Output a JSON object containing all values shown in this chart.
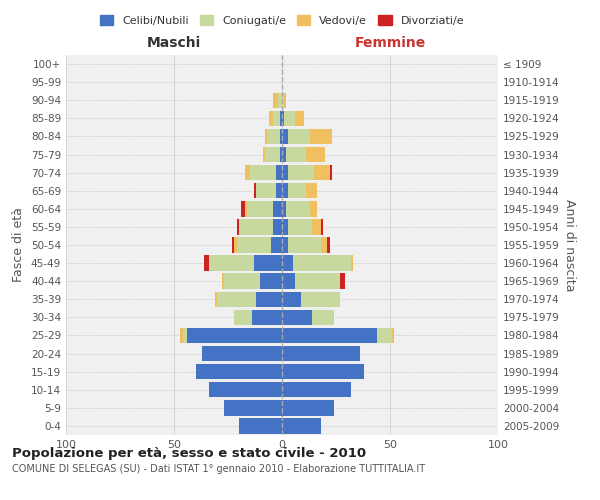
{
  "age_groups": [
    "0-4",
    "5-9",
    "10-14",
    "15-19",
    "20-24",
    "25-29",
    "30-34",
    "35-39",
    "40-44",
    "45-49",
    "50-54",
    "55-59",
    "60-64",
    "65-69",
    "70-74",
    "75-79",
    "80-84",
    "85-89",
    "90-94",
    "95-99",
    "100+"
  ],
  "birth_years": [
    "2005-2009",
    "2000-2004",
    "1995-1999",
    "1990-1994",
    "1985-1989",
    "1980-1984",
    "1975-1979",
    "1970-1974",
    "1965-1969",
    "1960-1964",
    "1955-1959",
    "1950-1954",
    "1945-1949",
    "1940-1944",
    "1935-1939",
    "1930-1934",
    "1925-1929",
    "1920-1924",
    "1915-1919",
    "1910-1914",
    "≤ 1909"
  ],
  "maschi": {
    "celibi": [
      20,
      27,
      34,
      40,
      37,
      44,
      14,
      12,
      10,
      13,
      5,
      4,
      4,
      3,
      3,
      1,
      1,
      1,
      0,
      0,
      0
    ],
    "coniugati": [
      0,
      0,
      0,
      0,
      0,
      2,
      8,
      18,
      17,
      21,
      16,
      16,
      12,
      9,
      12,
      7,
      6,
      3,
      2,
      0,
      0
    ],
    "vedovi": [
      0,
      0,
      0,
      0,
      0,
      1,
      0,
      1,
      1,
      0,
      1,
      0,
      1,
      0,
      2,
      1,
      1,
      2,
      2,
      0,
      0
    ],
    "divorziati": [
      0,
      0,
      0,
      0,
      0,
      0,
      0,
      0,
      0,
      2,
      1,
      1,
      2,
      1,
      0,
      0,
      0,
      0,
      0,
      0,
      0
    ]
  },
  "femmine": {
    "nubili": [
      18,
      24,
      32,
      38,
      36,
      44,
      14,
      9,
      6,
      5,
      3,
      3,
      2,
      3,
      3,
      2,
      3,
      1,
      0,
      0,
      0
    ],
    "coniugate": [
      0,
      0,
      0,
      0,
      0,
      7,
      10,
      18,
      21,
      27,
      15,
      11,
      11,
      8,
      12,
      9,
      10,
      5,
      1,
      0,
      0
    ],
    "vedove": [
      0,
      0,
      0,
      0,
      0,
      1,
      0,
      0,
      0,
      1,
      3,
      4,
      3,
      5,
      7,
      9,
      10,
      4,
      1,
      0,
      0
    ],
    "divorziate": [
      0,
      0,
      0,
      0,
      0,
      0,
      0,
      0,
      2,
      0,
      1,
      1,
      0,
      0,
      1,
      0,
      0,
      0,
      0,
      0,
      0
    ]
  },
  "colors": {
    "celibi_nubili": "#4472c4",
    "coniugati": "#c8d9a0",
    "vedovi": "#f0c060",
    "divorziati": "#cc2222"
  },
  "xlim": 100,
  "title": "Popolazione per età, sesso e stato civile - 2010",
  "subtitle": "COMUNE DI SELEGAS (SU) - Dati ISTAT 1° gennaio 2010 - Elaborazione TUTTITALIA.IT",
  "xlabel_left": "Maschi",
  "xlabel_right": "Femmine",
  "ylabel_left": "Fasce di età",
  "ylabel_right": "Anni di nascita",
  "bg_color": "#f0f0f0",
  "bar_height": 0.85
}
